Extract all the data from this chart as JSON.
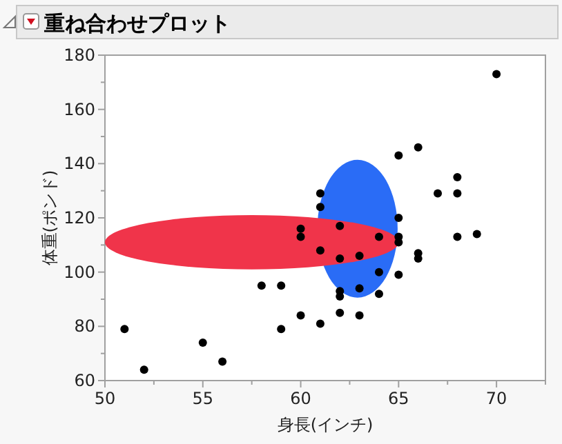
{
  "chart_data": {
    "type": "scatter",
    "title": "重ね合わせプロット",
    "xlabel": "身長(インチ)",
    "ylabel": "体重(ポンド)",
    "xlim": [
      50,
      72.5
    ],
    "ylim": [
      60,
      180
    ],
    "xticks": [
      50,
      {
        "value": 52.5,
        "label": null
      },
      55,
      {
        "value": 57.5,
        "label": null
      },
      60,
      {
        "value": 62.5,
        "label": null
      },
      65,
      {
        "value": 67.5,
        "label": null
      },
      70,
      {
        "value": 72.5,
        "label": null
      }
    ],
    "yticks": [
      60,
      {
        "value": 70,
        "label": null
      },
      80,
      {
        "value": 90,
        "label": null
      },
      100,
      {
        "value": 110,
        "label": null
      },
      120,
      {
        "value": 130,
        "label": null
      },
      140,
      {
        "value": 150,
        "label": null
      },
      160,
      {
        "value": 170,
        "label": null
      },
      180
    ],
    "marker": "circle",
    "series": [
      {
        "color": "#000000",
        "x": [
          51,
          52,
          55,
          56,
          58,
          59,
          59,
          60,
          60,
          61,
          61,
          61,
          60,
          61,
          70,
          65,
          66,
          68,
          67,
          68,
          65,
          62,
          64,
          65,
          65,
          68,
          69,
          66,
          66,
          62,
          63,
          64,
          65,
          62,
          62,
          63,
          64,
          62,
          63
        ],
        "values": [
          79,
          64,
          74,
          67,
          95,
          95,
          79,
          116,
          113,
          129,
          124,
          108,
          84,
          81,
          173,
          143,
          146,
          135,
          129,
          129,
          120,
          117,
          113,
          113,
          111,
          113,
          114,
          107,
          105,
          105,
          106,
          100,
          99,
          93,
          91,
          94,
          92,
          85,
          84
        ]
      }
    ]
  }
}
